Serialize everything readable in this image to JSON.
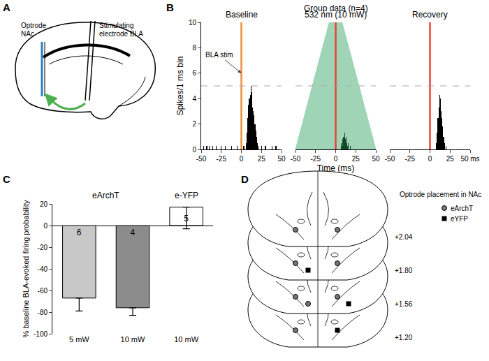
{
  "panel_labels": [
    "A",
    "B",
    "C",
    "D"
  ],
  "panel_a": {
    "optrode": [
      "Optrode",
      "NAc"
    ],
    "electrode": [
      "Stimulating",
      "electrode BLA"
    ]
  },
  "panel_b": {
    "title": "Group data (n=4)"
  },
  "chart_data": [
    {
      "type": "bar",
      "title": "Baseline",
      "x": [
        -47,
        -43,
        -40,
        -36,
        -31,
        -25,
        -20,
        -12,
        -5,
        3,
        6,
        7,
        8,
        9,
        10,
        11,
        12,
        13,
        14,
        15,
        16,
        17,
        18,
        19,
        20,
        21,
        25,
        30,
        38,
        43
      ],
      "values": [
        0.3,
        0.3,
        0.3,
        0.3,
        0.3,
        0.3,
        0.3,
        0.3,
        0.3,
        0.3,
        0.5,
        1.3,
        2.5,
        3.5,
        4,
        4.3,
        5,
        4.5,
        3.3,
        3,
        2.7,
        2,
        1.5,
        1,
        0.5,
        0.3,
        0.3,
        0.3,
        0.3,
        0.3
      ],
      "color": "#000000",
      "xlim": [
        -50,
        50
      ],
      "xticks": [
        -50,
        -25,
        0,
        25,
        50
      ],
      "ylim": [
        0,
        10
      ],
      "yticks": [
        0,
        2,
        4,
        6,
        8,
        10
      ],
      "y_label": "Spikes/1 ms bin",
      "reference_lines": [
        {
          "x": 0,
          "color": "#f28e3b"
        },
        {
          "y": 5,
          "color": "#aaaaaa",
          "line_style": "dashed"
        }
      ],
      "annotations": [
        {
          "text": "BLA stim",
          "x": 0,
          "y": 6
        }
      ]
    },
    {
      "type": "bar",
      "title": "532 nm (10 mW)",
      "x": [
        7,
        8,
        9,
        10,
        11,
        12,
        13,
        14,
        15,
        16,
        18
      ],
      "values": [
        0.5,
        0.3,
        0.8,
        1,
        1.3,
        0.8,
        1,
        0.5,
        0.3,
        0.5,
        0.3
      ],
      "color": "#000000",
      "xlim": [
        -50,
        50
      ],
      "xticks": [
        -50,
        -25,
        0,
        25,
        50
      ],
      "ylim": [
        0,
        10
      ],
      "tick_labels": "x",
      "x_label": "Time (ms)",
      "light": {
        "x": [
          -50,
          -8,
          8,
          50
        ],
        "y": [
          0,
          10,
          10,
          0
        ],
        "color": "#2ca25f"
      },
      "reference_lines": [
        {
          "x": 0,
          "color": "#e8413a"
        },
        {
          "y": 5,
          "color": "#aaaaaa",
          "line_style": "dashed"
        }
      ]
    },
    {
      "type": "bar",
      "title": "Recovery",
      "x": [
        8,
        9,
        10,
        11,
        12,
        13,
        14,
        15,
        16,
        17,
        18,
        20
      ],
      "values": [
        0.5,
        1.3,
        2.5,
        3.3,
        4.3,
        4,
        3,
        2.5,
        1.8,
        1,
        0.5,
        0.3
      ],
      "color": "#000000",
      "xlim": [
        -50,
        50
      ],
      "xticks": [
        -50,
        -25,
        0,
        25,
        {
          "value": 50,
          "label": "50 ms"
        }
      ],
      "ylim": [
        0,
        10
      ],
      "tick_labels": "x",
      "reference_lines": [
        {
          "x": 0,
          "color": "#e8413a"
        },
        {
          "y": 5,
          "color": "#aaaaaa",
          "line_style": "dashed"
        }
      ]
    },
    {
      "type": "bar",
      "categories": [
        "5 mW",
        "10 mW",
        "10 mW"
      ],
      "values": [
        -67,
        -76,
        17
      ],
      "error_minus": [
        12,
        7,
        20
      ],
      "colors": [
        "#c8c8c8",
        "#8c8c8c",
        "#ffffff"
      ],
      "n_labels": [
        "6",
        "4",
        "5"
      ],
      "groups": [
        {
          "label": "eArchT",
          "categories": [
            0,
            1
          ]
        },
        {
          "label": "e-YFP",
          "categories": [
            2
          ]
        }
      ],
      "y_label": "% baseline BLA-evoked firing probability",
      "ylim": [
        -100,
        20
      ],
      "yticks": [
        -100,
        -80,
        -60,
        -40,
        -20,
        0,
        20
      ]
    }
  ],
  "panel_d": {
    "legend_title": "Optrode placement in NAc",
    "series": [
      {
        "name": "eArchT",
        "marker": "circle"
      },
      {
        "name": "eYFP",
        "marker": "square"
      }
    ],
    "sections": [
      {
        "label": "+2.04",
        "eArchT": 2,
        "eYFP": 0
      },
      {
        "label": "+1.80",
        "eArchT": 2,
        "eYFP": 1
      },
      {
        "label": "+1.56",
        "eArchT": 3,
        "eYFP": 1
      },
      {
        "label": "+1.20",
        "eArchT": 1,
        "eYFP": 1
      }
    ]
  }
}
